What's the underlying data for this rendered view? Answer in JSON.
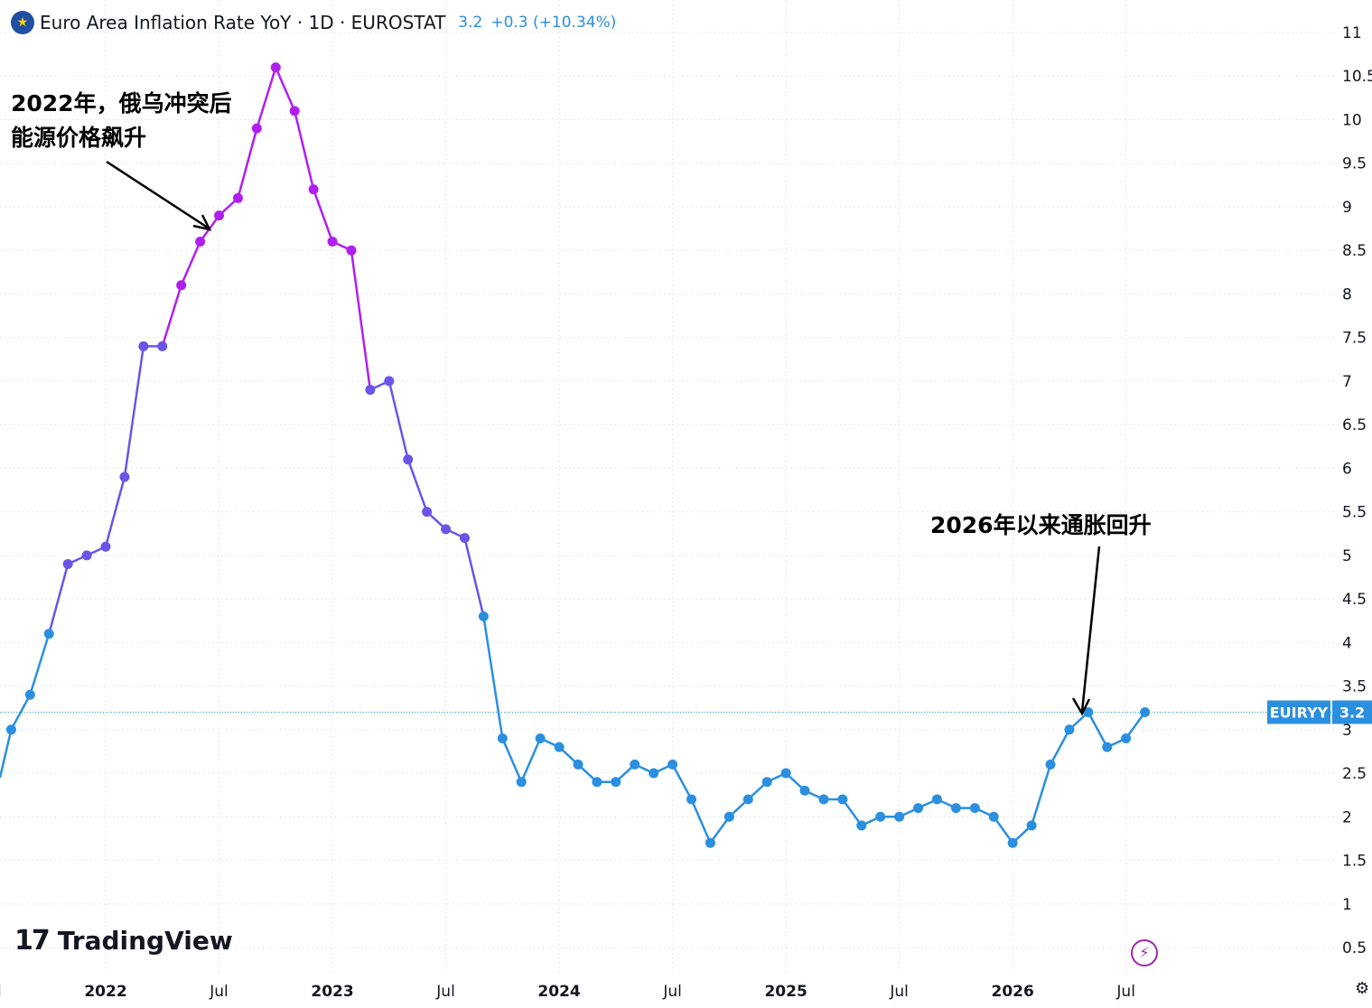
{
  "header": {
    "flag_icon": "eu-flag-icon",
    "title": "Euro Area Inflation Rate YoY · 1D · EUROSTAT",
    "last_value": "3.2",
    "change": "+0.3 (+10.34%)"
  },
  "annotations": {
    "a1_line1": "2022年，俄乌冲突后",
    "a1_line2": "能源价格飙升",
    "a2": "2026年以来通胀回升"
  },
  "price_label": {
    "symbol": "EUIRYY",
    "value": "3.2"
  },
  "logo": {
    "mark": "17",
    "text": "TradingView"
  },
  "icons": {
    "bolt": "lightning-icon",
    "settings": "gear-icon"
  },
  "colors": {
    "line_high": "#b01ff0",
    "line_mid": "#6a55e6",
    "line_low": "#2b8fe0",
    "label_bg": "#2b8fe0"
  },
  "chart_data": {
    "type": "line",
    "title": "Euro Area Inflation Rate YoY",
    "ylim": [
      0.3,
      11.15
    ],
    "y_ticks": [
      0.5,
      1,
      1.5,
      2,
      2.5,
      3,
      3.5,
      4,
      4.5,
      5,
      5.5,
      6,
      6.5,
      7,
      7.5,
      8,
      8.5,
      9,
      9.5,
      10,
      10.5,
      11
    ],
    "x_ticks": [
      {
        "label": "Jul",
        "date": "2021-07"
      },
      {
        "label": "2022",
        "date": "2022-01"
      },
      {
        "label": "Jul",
        "date": "2022-07"
      },
      {
        "label": "2023",
        "date": "2023-01"
      },
      {
        "label": "Jul",
        "date": "2023-07"
      },
      {
        "label": "2024",
        "date": "2024-01"
      },
      {
        "label": "Jul",
        "date": "2024-07"
      },
      {
        "label": "2025",
        "date": "2025-01"
      },
      {
        "label": "Jul",
        "date": "2025-07"
      },
      {
        "label": "2026",
        "date": "2026-01"
      },
      {
        "label": "Jul",
        "date": "2026-07"
      }
    ],
    "grid": true,
    "series": [
      {
        "x": [
          "2021-08",
          "2021-09",
          "2021-10",
          "2021-11",
          "2021-12",
          "2022-01",
          "2022-02",
          "2022-03",
          "2022-04",
          "2022-05",
          "2022-06",
          "2022-07",
          "2022-08",
          "2022-09",
          "2022-10",
          "2022-11",
          "2022-12",
          "2023-01",
          "2023-02",
          "2023-03",
          "2023-04",
          "2023-05",
          "2023-06",
          "2023-07",
          "2023-08",
          "2023-09",
          "2023-10",
          "2023-11",
          "2023-12",
          "2024-01",
          "2024-02",
          "2024-03",
          "2024-04",
          "2024-05",
          "2024-06",
          "2024-07",
          "2024-08",
          "2024-09",
          "2024-10",
          "2024-11",
          "2024-12",
          "2025-01",
          "2025-02",
          "2025-03",
          "2025-04",
          "2025-05",
          "2025-06",
          "2025-07",
          "2025-08",
          "2025-09",
          "2025-10",
          "2025-11",
          "2025-12",
          "2026-01",
          "2026-02",
          "2026-03",
          "2026-04",
          "2026-05",
          "2026-06",
          "2026-07",
          "2026-08"
        ],
        "values": [
          3.0,
          3.4,
          4.1,
          4.9,
          5.0,
          5.1,
          5.9,
          7.4,
          7.4,
          8.1,
          8.6,
          8.9,
          9.1,
          9.9,
          10.6,
          10.1,
          9.2,
          8.6,
          8.5,
          6.9,
          7.0,
          6.1,
          5.5,
          5.3,
          5.2,
          4.3,
          2.9,
          2.4,
          2.9,
          2.8,
          2.6,
          2.4,
          2.4,
          2.6,
          2.5,
          2.6,
          2.2,
          1.7,
          2.0,
          2.2,
          2.4,
          2.5,
          2.3,
          2.2,
          2.2,
          1.9,
          2.0,
          2.0,
          2.1,
          2.2,
          2.1,
          2.1,
          2.0,
          1.7,
          1.9,
          2.6,
          3.0,
          3.2,
          2.8,
          2.9,
          3.2
        ]
      }
    ]
  }
}
